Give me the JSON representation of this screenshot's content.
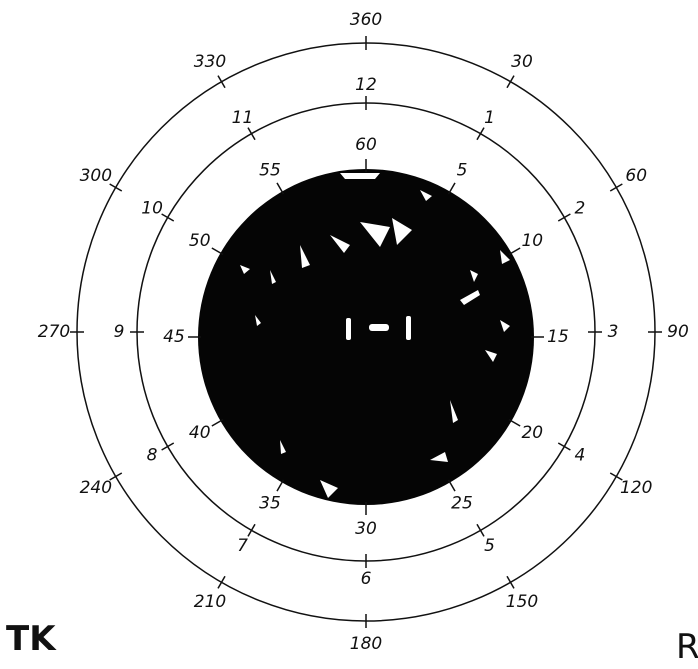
{
  "outer_labels": [
    360,
    30,
    60,
    90,
    120,
    150,
    180,
    210,
    240,
    270,
    300,
    330
  ],
  "middle_labels": [
    12,
    1,
    2,
    3,
    4,
    5,
    6,
    7,
    8,
    9,
    10,
    11
  ],
  "inner_labels": [
    60,
    5,
    10,
    15,
    20,
    25,
    30,
    35,
    40,
    45,
    50,
    55
  ],
  "corner_left": "TK",
  "corner_right": "R"
}
